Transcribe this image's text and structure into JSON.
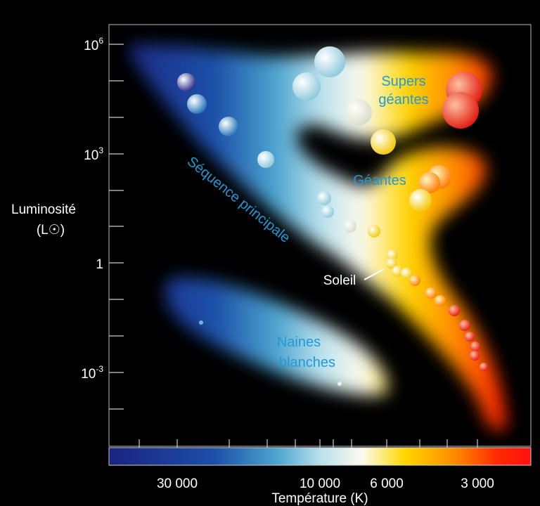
{
  "y_axis": {
    "label": "Luminosité",
    "unit": "(L☉)",
    "ticks": [
      {
        "base": "10",
        "exp": "6"
      },
      {
        "base": "10",
        "exp": "3"
      },
      {
        "base": "1"
      },
      {
        "base": "10",
        "exp": "-3"
      }
    ]
  },
  "x_axis": {
    "label": "Température (K)",
    "ticks": [
      "30 000",
      "10 000",
      "6 000",
      "3 000"
    ]
  },
  "regions": {
    "supergiants": [
      "Supers",
      "géantes"
    ],
    "giants": "Géantes",
    "main_sequence": "Séquence principale",
    "white_dwarfs": [
      "Naines",
      "blanches"
    ],
    "sun": "Soleil"
  }
}
